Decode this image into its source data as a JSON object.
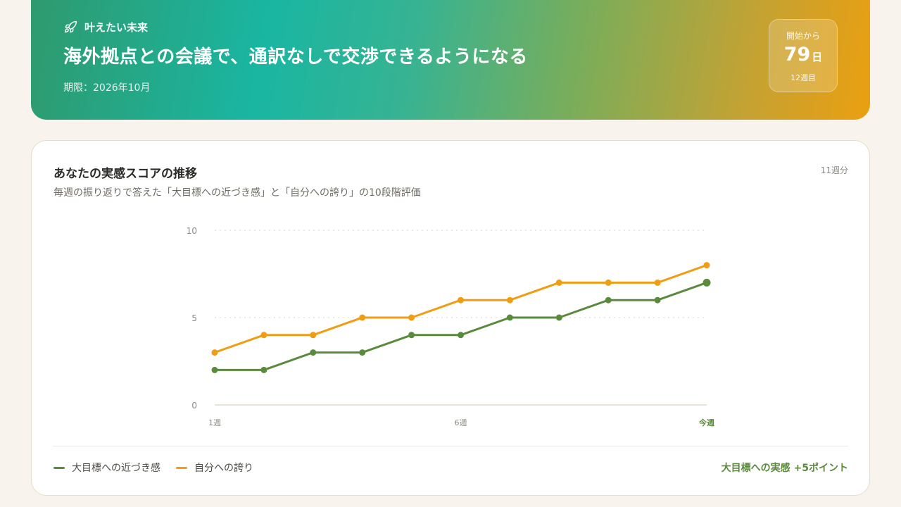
{
  "hero": {
    "tag": "叶えたい未来",
    "title": "海外拠点との会議で、通訳なしで交渉できるようになる",
    "deadline": "期限：2026年10月",
    "counter_label": "開始から",
    "counter_value": "79",
    "counter_unit": "日",
    "counter_weeks": "12週目"
  },
  "card": {
    "title": "あなたの実感スコアの推移",
    "subtitle": "毎週の振り返りで答えた「大目標への近づき感」と「自分への誇り」の10段階評価",
    "count": "11週分",
    "summary": "大目標への実感 +5ポイント"
  },
  "chart_data": {
    "type": "line",
    "x": [
      1,
      2,
      3,
      4,
      5,
      6,
      7,
      8,
      9,
      10,
      11
    ],
    "x_tick_labels": [
      "1週",
      "6週",
      "今週"
    ],
    "y_ticks": [
      "10",
      "5",
      "0"
    ],
    "ylim": [
      0,
      10
    ],
    "grid": true,
    "legend_position": "bottom-left",
    "series": [
      {
        "name": "大目標への近づき感",
        "color": "#5a8a3c",
        "values": [
          2,
          2,
          3,
          3,
          4,
          4,
          5,
          5,
          6,
          6,
          7
        ]
      },
      {
        "name": "自分への誇り",
        "color": "#f09d13",
        "values": [
          3,
          4,
          4,
          5,
          5,
          6,
          6,
          7,
          7,
          7,
          8
        ]
      }
    ]
  }
}
